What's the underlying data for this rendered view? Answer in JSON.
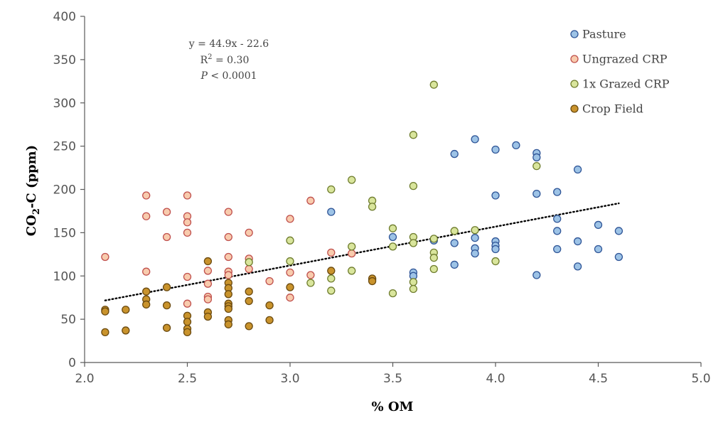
{
  "chart_data": {
    "type": "scatter",
    "xlabel": "% OM",
    "ylabel_main": "CO",
    "ylabel_sub": "2",
    "ylabel_rest": "-C (ppm)",
    "xlim": [
      2.0,
      5.0
    ],
    "ylim": [
      0,
      400
    ],
    "xticks": [
      "2.0",
      "2.5",
      "3.0",
      "3.5",
      "4.0",
      "4.5",
      "5.0"
    ],
    "yticks": [
      "0",
      "50",
      "100",
      "150",
      "200",
      "250",
      "300",
      "350",
      "400"
    ],
    "grid": false,
    "legend_position": "top-right",
    "annotation": {
      "line1": "y = 44.9x - 22.6",
      "line2_prefix": "R",
      "line2_sup": "2",
      "line2_rest": " = 0.30",
      "line3_p": "P",
      "line3_rest": " < 0.0001"
    },
    "trendline": {
      "slope": 44.9,
      "intercept": -22.6,
      "x_range": [
        2.1,
        4.6
      ],
      "style": "dotted"
    },
    "series": [
      {
        "name": "Pasture",
        "color": "#9dc3e6",
        "edge": "#2f5597",
        "points": [
          [
            3.2,
            174
          ],
          [
            3.5,
            145
          ],
          [
            3.6,
            104
          ],
          [
            3.6,
            100
          ],
          [
            3.7,
            141
          ],
          [
            3.8,
            241
          ],
          [
            3.8,
            138
          ],
          [
            3.8,
            113
          ],
          [
            3.9,
            258
          ],
          [
            3.9,
            144
          ],
          [
            3.9,
            132
          ],
          [
            3.9,
            126
          ],
          [
            4.0,
            246
          ],
          [
            4.0,
            193
          ],
          [
            4.0,
            140
          ],
          [
            4.0,
            135
          ],
          [
            4.0,
            131
          ],
          [
            4.1,
            251
          ],
          [
            4.2,
            242
          ],
          [
            4.2,
            237
          ],
          [
            4.2,
            195
          ],
          [
            4.2,
            101
          ],
          [
            4.3,
            197
          ],
          [
            4.3,
            166
          ],
          [
            4.3,
            152
          ],
          [
            4.3,
            131
          ],
          [
            4.4,
            223
          ],
          [
            4.4,
            140
          ],
          [
            4.4,
            111
          ],
          [
            4.5,
            159
          ],
          [
            4.5,
            131
          ],
          [
            4.6,
            152
          ],
          [
            4.6,
            122
          ]
        ]
      },
      {
        "name": "Ungrazed CRP",
        "color": "#f8cbad",
        "edge": "#c0504d",
        "points": [
          [
            2.1,
            122
          ],
          [
            2.3,
            193
          ],
          [
            2.3,
            169
          ],
          [
            2.3,
            105
          ],
          [
            2.4,
            174
          ],
          [
            2.4,
            145
          ],
          [
            2.5,
            193
          ],
          [
            2.5,
            169
          ],
          [
            2.5,
            162
          ],
          [
            2.5,
            150
          ],
          [
            2.5,
            99
          ],
          [
            2.5,
            68
          ],
          [
            2.6,
            106
          ],
          [
            2.6,
            91
          ],
          [
            2.6,
            76
          ],
          [
            2.6,
            73
          ],
          [
            2.7,
            174
          ],
          [
            2.7,
            145
          ],
          [
            2.7,
            122
          ],
          [
            2.7,
            105
          ],
          [
            2.7,
            101
          ],
          [
            2.8,
            150
          ],
          [
            2.8,
            120
          ],
          [
            2.8,
            108
          ],
          [
            2.9,
            94
          ],
          [
            3.0,
            166
          ],
          [
            3.0,
            104
          ],
          [
            3.0,
            75
          ],
          [
            3.1,
            187
          ],
          [
            3.1,
            101
          ],
          [
            3.2,
            127
          ],
          [
            3.3,
            126
          ]
        ]
      },
      {
        "name": "1x Grazed CRP",
        "color": "#d9e59c",
        "edge": "#6f7d2e",
        "points": [
          [
            2.8,
            116
          ],
          [
            3.0,
            141
          ],
          [
            3.0,
            117
          ],
          [
            3.1,
            92
          ],
          [
            3.2,
            200
          ],
          [
            3.2,
            97
          ],
          [
            3.2,
            83
          ],
          [
            3.3,
            211
          ],
          [
            3.3,
            134
          ],
          [
            3.3,
            106
          ],
          [
            3.4,
            187
          ],
          [
            3.4,
            180
          ],
          [
            3.4,
            96
          ],
          [
            3.5,
            155
          ],
          [
            3.5,
            134
          ],
          [
            3.5,
            80
          ],
          [
            3.6,
            263
          ],
          [
            3.6,
            204
          ],
          [
            3.6,
            145
          ],
          [
            3.6,
            138
          ],
          [
            3.6,
            93
          ],
          [
            3.6,
            85
          ],
          [
            3.7,
            321
          ],
          [
            3.7,
            143
          ],
          [
            3.7,
            127
          ],
          [
            3.7,
            121
          ],
          [
            3.7,
            108
          ],
          [
            3.8,
            152
          ],
          [
            3.9,
            153
          ],
          [
            4.0,
            117
          ],
          [
            4.2,
            227
          ]
        ]
      },
      {
        "name": "Crop Field",
        "color": "#c9932c",
        "edge": "#6b4a10",
        "points": [
          [
            2.1,
            61
          ],
          [
            2.1,
            59
          ],
          [
            2.1,
            35
          ],
          [
            2.2,
            61
          ],
          [
            2.2,
            37
          ],
          [
            2.3,
            82
          ],
          [
            2.3,
            73
          ],
          [
            2.3,
            67
          ],
          [
            2.4,
            87
          ],
          [
            2.4,
            66
          ],
          [
            2.4,
            40
          ],
          [
            2.5,
            54
          ],
          [
            2.5,
            47
          ],
          [
            2.5,
            39
          ],
          [
            2.5,
            35
          ],
          [
            2.6,
            117
          ],
          [
            2.6,
            58
          ],
          [
            2.6,
            53
          ],
          [
            2.7,
            92
          ],
          [
            2.7,
            86
          ],
          [
            2.7,
            79
          ],
          [
            2.7,
            68
          ],
          [
            2.7,
            65
          ],
          [
            2.7,
            62
          ],
          [
            2.7,
            49
          ],
          [
            2.7,
            44
          ],
          [
            2.8,
            82
          ],
          [
            2.8,
            71
          ],
          [
            2.8,
            42
          ],
          [
            2.9,
            66
          ],
          [
            2.9,
            49
          ],
          [
            3.0,
            87
          ],
          [
            3.2,
            106
          ],
          [
            3.4,
            97
          ],
          [
            3.4,
            94
          ]
        ]
      }
    ]
  }
}
